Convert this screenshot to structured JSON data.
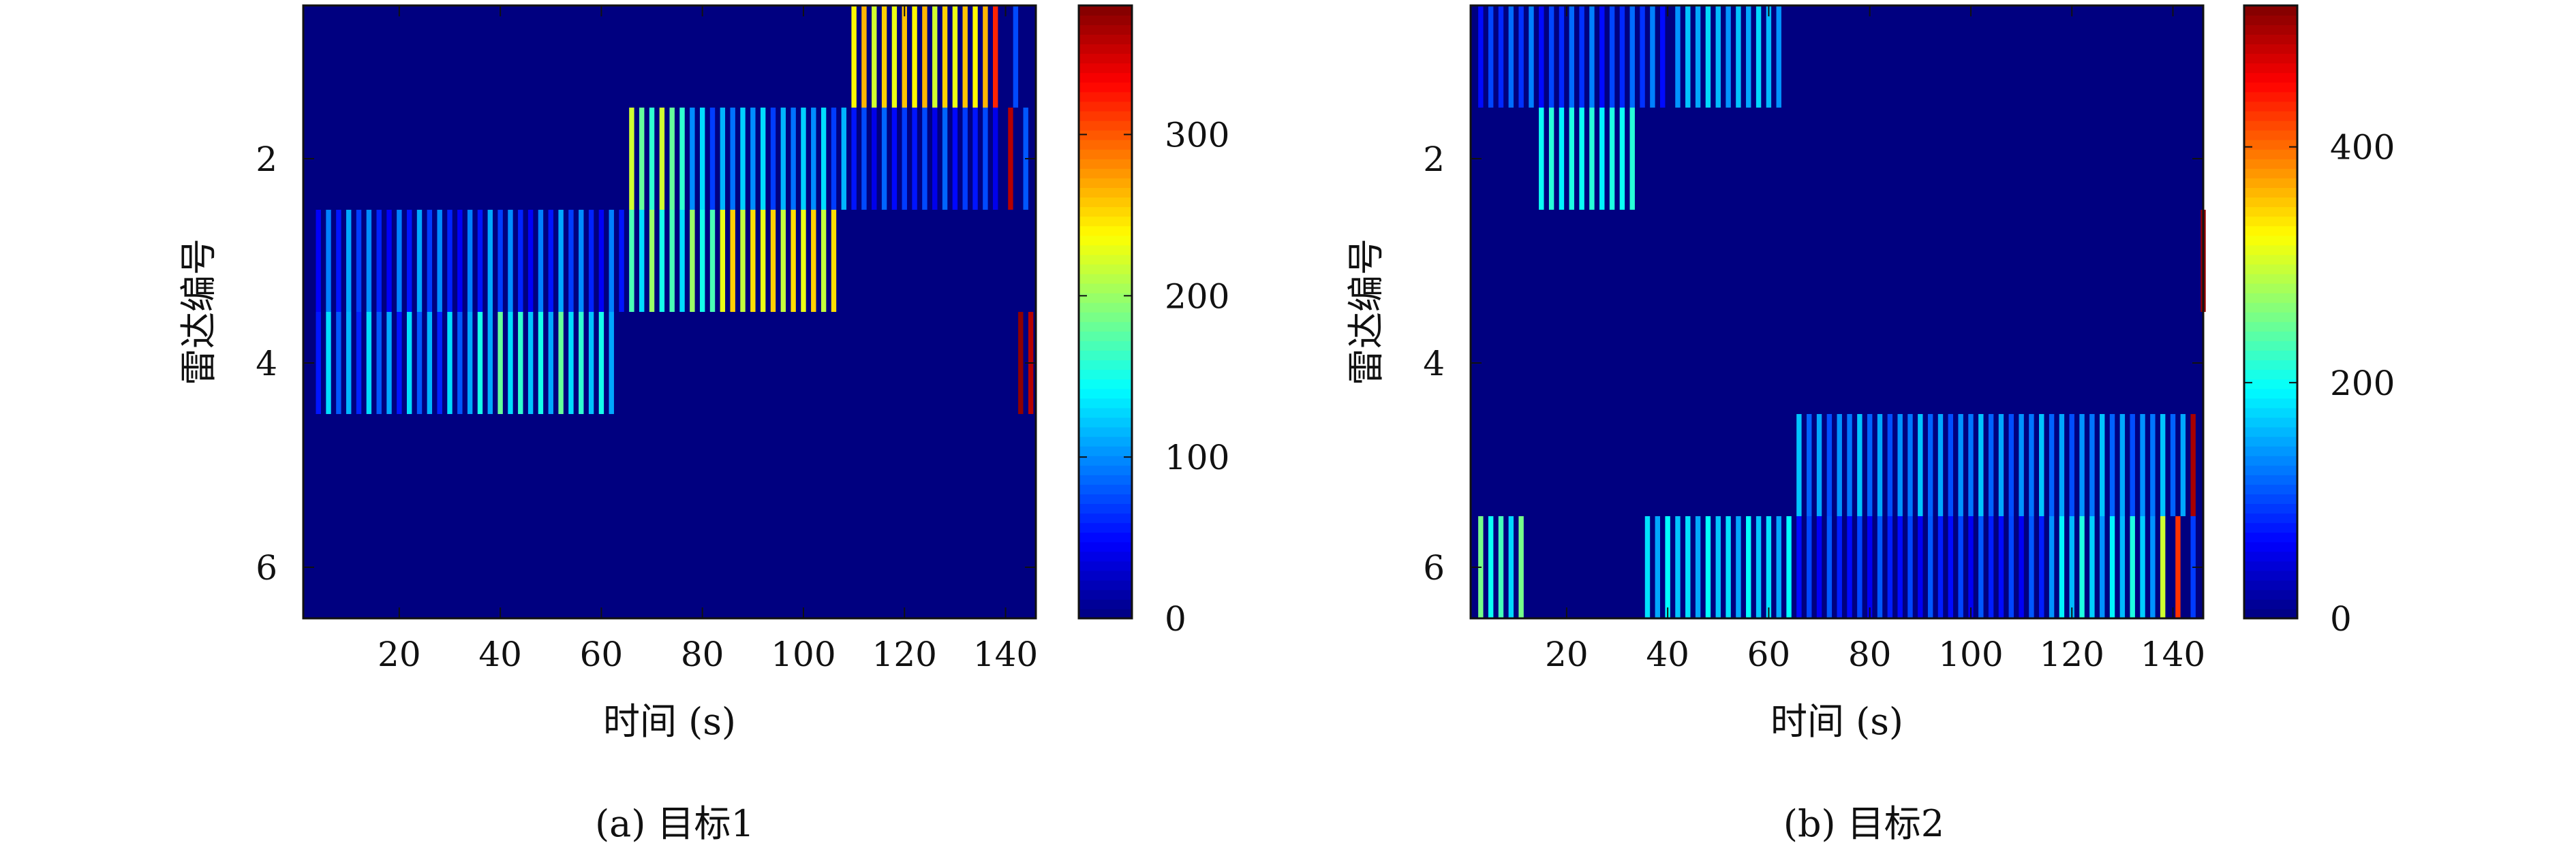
{
  "chart_data": [
    {
      "type": "heatmap",
      "caption": "(a) 目标1",
      "xlabel": "时间 (s)",
      "ylabel": "雷达编号",
      "xlim": [
        1,
        146
      ],
      "ylim": [
        0.5,
        6.5
      ],
      "xticks": [
        "20",
        "40",
        "60",
        "80",
        "100",
        "120",
        "140"
      ],
      "yticks": [
        "2",
        "4",
        "6"
      ],
      "colorbar": {
        "range": [
          0,
          380
        ],
        "ticks": [
          "0",
          "100",
          "200",
          "300"
        ]
      },
      "background_value": 0,
      "segments": [
        {
          "radar": 4,
          "x_start": 4,
          "x_end": 34,
          "pattern": [
            55,
            130,
            80,
            115,
            60,
            130,
            80,
            110
          ],
          "note": "sweep stripes"
        },
        {
          "radar": 4,
          "x_start": 36,
          "x_end": 62,
          "pattern": [
            150,
            110,
            180,
            130,
            160,
            120
          ]
        },
        {
          "radar": 3,
          "x_start": 4,
          "x_end": 64,
          "pattern": [
            45,
            95,
            55,
            110,
            70,
            100,
            60
          ]
        },
        {
          "radar": 3,
          "x_start": 66,
          "x_end": 82,
          "pattern": [
            170,
            130,
            200,
            150
          ]
        },
        {
          "radar": 3,
          "x_start": 84,
          "x_end": 107,
          "pattern": [
            230,
            255,
            215,
            250
          ]
        },
        {
          "radar": 2,
          "x_start": 66,
          "x_end": 76,
          "pattern": [
            220,
            180,
            160
          ]
        },
        {
          "radar": 2,
          "x_start": 78,
          "x_end": 108,
          "pattern": [
            100,
            130,
            70,
            115,
            90,
            125
          ]
        },
        {
          "radar": 2,
          "x_start": 110,
          "x_end": 139,
          "pattern": [
            55,
            75,
            40,
            85,
            50,
            70
          ]
        },
        {
          "radar": 2,
          "x_start": 141,
          "x_end": 141,
          "pattern": [
            360
          ]
        },
        {
          "radar": 2,
          "x_start": 144,
          "x_end": 144,
          "pattern": [
            80
          ]
        },
        {
          "radar": 1,
          "x_start": 110,
          "x_end": 137,
          "pattern": [
            240,
            265,
            220,
            255,
            230,
            260
          ]
        },
        {
          "radar": 1,
          "x_start": 138,
          "x_end": 138,
          "pattern": [
            320
          ]
        },
        {
          "radar": 1,
          "x_start": 142,
          "x_end": 142,
          "pattern": [
            75
          ]
        },
        {
          "radar": 4,
          "x_start": 143,
          "x_end": 143,
          "pattern": [
            375
          ]
        },
        {
          "radar": 4,
          "x_start": 145,
          "x_end": 145,
          "pattern": [
            360
          ]
        }
      ]
    },
    {
      "type": "heatmap",
      "caption": "(b) 目标2",
      "xlabel": "时间 (s)",
      "ylabel": "雷达编号",
      "xlim": [
        1,
        146
      ],
      "ylim": [
        0.5,
        6.5
      ],
      "xticks": [
        "20",
        "40",
        "60",
        "80",
        "100",
        "120",
        "140"
      ],
      "yticks": [
        "2",
        "4",
        "6"
      ],
      "colorbar": {
        "range": [
          0,
          520
        ],
        "ticks": [
          "0",
          "200",
          "400"
        ]
      },
      "background_value": 0,
      "segments": [
        {
          "radar": 1,
          "x_start": 3,
          "x_end": 40,
          "pattern": [
            70,
            100,
            85,
            120,
            90,
            130
          ]
        },
        {
          "radar": 1,
          "x_start": 42,
          "x_end": 62,
          "pattern": [
            140,
            165,
            150,
            175,
            160
          ]
        },
        {
          "radar": 2,
          "x_start": 15,
          "x_end": 34,
          "pattern": [
            200,
            215,
            190,
            210
          ]
        },
        {
          "radar": 3,
          "x_start": 146,
          "x_end": 146,
          "pattern": [
            510
          ]
        },
        {
          "radar": 5,
          "x_start": 66,
          "x_end": 142,
          "pattern": [
            165,
            115,
            150,
            105,
            140,
            125
          ]
        },
        {
          "radar": 5,
          "x_start": 144,
          "x_end": 144,
          "pattern": [
            500
          ]
        },
        {
          "radar": 6,
          "x_start": 3,
          "x_end": 12,
          "pattern": [
            255,
            200,
            230,
            175
          ]
        },
        {
          "radar": 6,
          "x_start": 36,
          "x_end": 64,
          "pattern": [
            180,
            150,
            195,
            165
          ]
        },
        {
          "radar": 6,
          "x_start": 66,
          "x_end": 114,
          "pattern": [
            70,
            100,
            60,
            110,
            80
          ]
        },
        {
          "radar": 6,
          "x_start": 116,
          "x_end": 136,
          "pattern": [
            140,
            190,
            160,
            210,
            170
          ]
        },
        {
          "radar": 6,
          "x_start": 138,
          "x_end": 138,
          "pattern": [
            300
          ]
        },
        {
          "radar": 6,
          "x_start": 141,
          "x_end": 141,
          "pattern": [
            430
          ]
        },
        {
          "radar": 6,
          "x_start": 144,
          "x_end": 144,
          "pattern": [
            95
          ]
        }
      ]
    }
  ]
}
